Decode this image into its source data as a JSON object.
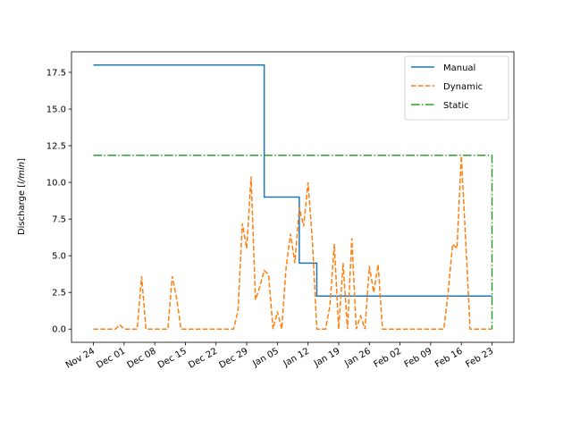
{
  "chart_data": {
    "type": "line",
    "ylabel": [
      "Discharge [",
      "l/min",
      "]"
    ],
    "xlim": [
      "11-19",
      "02-28"
    ],
    "xticks": [
      {
        "value": "11-24",
        "label": "Nov 24"
      },
      {
        "value": "12-01",
        "label": "Dec 01"
      },
      {
        "value": "12-08",
        "label": "Dec 08"
      },
      {
        "value": "12-15",
        "label": "Dec 15"
      },
      {
        "value": "12-22",
        "label": "Dec 22"
      },
      {
        "value": "12-29",
        "label": "Dec 29"
      },
      {
        "value": "01-05",
        "label": "Jan 05"
      },
      {
        "value": "01-12",
        "label": "Jan 12"
      },
      {
        "value": "01-19",
        "label": "Jan 19"
      },
      {
        "value": "01-26",
        "label": "Jan 26"
      },
      {
        "value": "02-02",
        "label": "Feb 02"
      },
      {
        "value": "02-09",
        "label": "Feb 09"
      },
      {
        "value": "02-16",
        "label": "Feb 16"
      },
      {
        "value": "02-23",
        "label": "Feb 23"
      }
    ],
    "ylim": [
      -0.9,
      18.9
    ],
    "yticks": [
      {
        "value": 0,
        "label": "0.0"
      },
      2.5,
      {
        "value": 5,
        "label": "5.0"
      },
      7.5,
      {
        "value": 10,
        "label": "10.0"
      },
      12.5,
      {
        "value": 15,
        "label": "15.0"
      },
      17.5
    ],
    "legend": "upper right",
    "series": [
      {
        "name": "Manual",
        "color": "#1f77b4",
        "linestyle": "solid",
        "x": [
          "11-24",
          "01-02",
          "01-02",
          "01-10",
          "01-10",
          "01-14",
          "01-14",
          "02-23"
        ],
        "values": [
          18,
          18,
          9,
          9,
          4.5,
          4.5,
          2.25,
          2.25
        ]
      },
      {
        "name": "Dynamic",
        "color": "#ff7f0e",
        "linestyle": "dashed",
        "x": [
          "11-24",
          "11-29",
          "11-30",
          "12-01",
          "12-04",
          "12-05",
          "12-06",
          "12-11",
          "12-12",
          "12-13",
          "12-14",
          "12-26",
          "12-27",
          "12-28",
          "12-29",
          "12-30",
          "12-31",
          "01-01",
          "01-02",
          "01-03",
          "01-04",
          "01-05",
          "01-06",
          "01-07",
          "01-08",
          "01-09",
          "01-10",
          "01-11",
          "01-12",
          "01-13",
          "01-14",
          "01-16",
          "01-17",
          "01-18",
          "01-19",
          "01-20",
          "01-21",
          "01-22",
          "01-23",
          "01-24",
          "01-25",
          "01-26",
          "01-27",
          "01-28",
          "01-29",
          "02-12",
          "02-13",
          "02-14",
          "02-15",
          "02-16",
          "02-17",
          "02-18",
          "02-23"
        ],
        "values": [
          0,
          0,
          0.3,
          0,
          0,
          3.6,
          0,
          0,
          3.6,
          2.1,
          0,
          0,
          1.2,
          7.2,
          5.5,
          10.4,
          2.0,
          2.9,
          4.0,
          3.7,
          0,
          1.2,
          0,
          4.2,
          6.5,
          4.5,
          8.3,
          7.0,
          10.0,
          6.0,
          0,
          0,
          1.6,
          5.8,
          0,
          4.5,
          0,
          6.2,
          0,
          0.9,
          0,
          4.3,
          2.5,
          4.4,
          0,
          0,
          2.5,
          5.8,
          5.5,
          11.8,
          6.0,
          0,
          0
        ]
      },
      {
        "name": "Static",
        "color": "#2ca02c",
        "linestyle": "dashdot",
        "x": [
          "11-24",
          "02-23",
          "02-23"
        ],
        "values": [
          11.85,
          11.85,
          0
        ]
      }
    ]
  }
}
